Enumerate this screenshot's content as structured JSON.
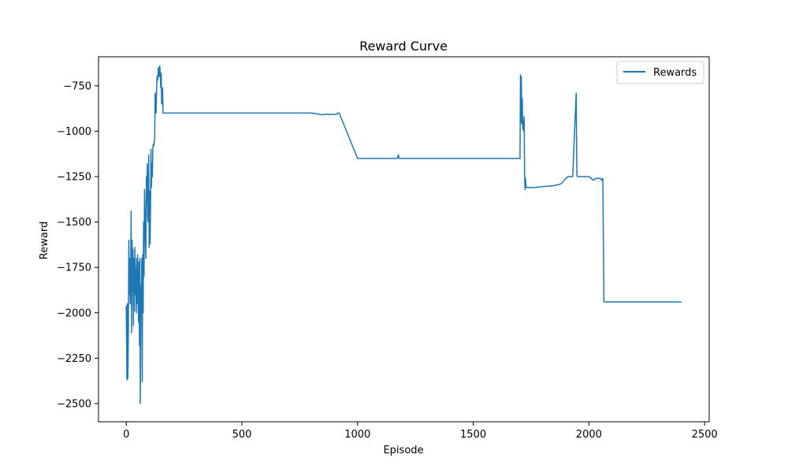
{
  "chart_data": {
    "type": "line",
    "title": "Reward Curve",
    "xlabel": "Episode",
    "ylabel": "Reward",
    "xlim": [
      -120,
      2520
    ],
    "ylim": [
      -2600,
      -590
    ],
    "xticks": [
      0,
      500,
      1000,
      1500,
      2000,
      2500
    ],
    "yticks": [
      -2500,
      -2250,
      -2000,
      -1750,
      -1500,
      -1250,
      -1000,
      -750
    ],
    "xtick_labels": [
      "0",
      "500",
      "1000",
      "1500",
      "2000",
      "2500"
    ],
    "ytick_labels": [
      "−2500",
      "−2250",
      "−2000",
      "−1750",
      "−1500",
      "−1250",
      "−1000",
      "−750"
    ],
    "grid": false,
    "legend_position": "top-right",
    "series": [
      {
        "name": "Rewards",
        "color": "#1f77b4",
        "x": [
          0,
          3,
          5,
          7,
          9,
          11,
          13,
          15,
          17,
          19,
          21,
          23,
          25,
          27,
          29,
          31,
          33,
          35,
          37,
          39,
          41,
          43,
          45,
          47,
          49,
          51,
          53,
          55,
          57,
          59,
          61,
          63,
          65,
          67,
          69,
          71,
          73,
          75,
          77,
          79,
          81,
          83,
          85,
          87,
          89,
          91,
          93,
          95,
          97,
          99,
          101,
          103,
          105,
          107,
          109,
          111,
          113,
          115,
          117,
          119,
          121,
          123,
          125,
          127,
          129,
          131,
          133,
          135,
          137,
          139,
          141,
          143,
          145,
          147,
          149,
          151,
          153,
          155,
          157,
          159,
          161,
          163,
          165,
          167,
          169,
          171,
          173,
          175,
          177,
          179,
          181,
          183,
          185,
          187,
          190,
          300,
          500,
          620,
          700,
          800,
          830,
          850,
          870,
          880,
          890,
          900,
          910,
          915,
          920,
          922,
          1000,
          1160,
          1168,
          1172,
          1176,
          1180,
          1300,
          1500,
          1600,
          1700,
          1702,
          1704,
          1706,
          1708,
          1710,
          1712,
          1714,
          1716,
          1718,
          1720,
          1722,
          1724,
          1726,
          1728,
          1730,
          1732,
          1734,
          1740,
          1760,
          1800,
          1850,
          1880,
          1900,
          1910,
          1920,
          1930,
          1945,
          1948,
          1950,
          1952,
          1955,
          1980,
          2000,
          2020,
          2030,
          2040,
          2050,
          2055,
          2060,
          2065,
          2070,
          2100,
          2200,
          2300,
          2400
        ],
        "y": [
          -1960,
          -2370,
          -1950,
          -2360,
          -2100,
          -1600,
          -1900,
          -1700,
          -1950,
          -1800,
          -1440,
          -2110,
          -1600,
          -1880,
          -1650,
          -2070,
          -1700,
          -1990,
          -1640,
          -1900,
          -1750,
          -2000,
          -1700,
          -1950,
          -1680,
          -1920,
          -2050,
          -1720,
          -2180,
          -1700,
          -2500,
          -1850,
          -2000,
          -1700,
          -2380,
          -1680,
          -2000,
          -1500,
          -1800,
          -1320,
          -1440,
          -1600,
          -1700,
          -1250,
          -1400,
          -1180,
          -1480,
          -1500,
          -1130,
          -1640,
          -1330,
          -1620,
          -1400,
          -1100,
          -1310,
          -1180,
          -1250,
          -1090,
          -1070,
          -1080,
          -1060,
          -1050,
          -790,
          -830,
          -900,
          -780,
          -700,
          -720,
          -690,
          -650,
          -700,
          -670,
          -640,
          -700,
          -760,
          -680,
          -850,
          -800,
          -760,
          -900,
          -900,
          -900,
          -900,
          -900,
          -900,
          -900,
          -900,
          -900,
          -900,
          -900,
          -900,
          -900,
          -900,
          -900,
          -900,
          -900,
          -900,
          -900,
          -900,
          -900,
          -905,
          -910,
          -905,
          -910,
          -905,
          -908,
          -905,
          -900,
          -900,
          -905,
          -1150,
          -1150,
          -1150,
          -1150,
          -1130,
          -1150,
          -1150,
          -1150,
          -1150,
          -1150,
          -1150,
          -690,
          -950,
          -700,
          -960,
          -820,
          -990,
          -940,
          -1000,
          -920,
          -1230,
          -1320,
          -1260,
          -1300,
          -1310,
          -1310,
          -1310,
          -1310,
          -1310,
          -1305,
          -1300,
          -1290,
          -1260,
          -1250,
          -1250,
          -1250,
          -790,
          -1240,
          -1250,
          -1250,
          -1250,
          -1250,
          -1250,
          -1270,
          -1260,
          -1260,
          -1260,
          -1270,
          -1260,
          -1940,
          -1940,
          -1940,
          -1940,
          -1940,
          -1940
        ]
      }
    ]
  }
}
